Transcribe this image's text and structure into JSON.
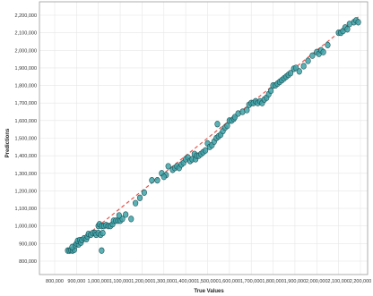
{
  "chart_data": {
    "type": "scatter",
    "xlabel": "True Values",
    "ylabel": "Predictions",
    "xlim": [
      800000,
      2200000
    ],
    "ylim": [
      800000,
      2200000
    ],
    "x_ticks": [
      "800,000",
      "900,000",
      "1,000,000",
      "1,100,000",
      "1,200,000",
      "1,300,000",
      "1,400,000",
      "1,500,000",
      "1,600,000",
      "1,700,000",
      "1,800,000",
      "1,900,000",
      "2,000,000",
      "2,100,000",
      "2,200,000"
    ],
    "y_ticks": [
      "800,000",
      "900,000",
      "1,000,000",
      "1,100,000",
      "1,200,000",
      "1,300,000",
      "1,400,000",
      "1,500,000",
      "1,600,000",
      "1,700,000",
      "1,800,000",
      "1,900,000",
      "2,000,000",
      "2,100,000",
      "2,200,000"
    ],
    "grid": true,
    "reference_line": {
      "style": "dashed",
      "color": "#e8534a",
      "from": [
        860000,
        860000
      ],
      "to": [
        2190000,
        2190000
      ]
    },
    "marker_color": "#3fa3a8",
    "series": [
      {
        "points": [
          [
            860000,
            860000
          ],
          [
            868000,
            860000
          ],
          [
            875000,
            862000
          ],
          [
            882000,
            860000
          ],
          [
            890000,
            865000
          ],
          [
            880000,
            880000
          ],
          [
            895000,
            890000
          ],
          [
            900000,
            900000
          ],
          [
            910000,
            895000
          ],
          [
            905000,
            915000
          ],
          [
            915000,
            920000
          ],
          [
            920000,
            905000
          ],
          [
            925000,
            920000
          ],
          [
            935000,
            930000
          ],
          [
            945000,
            925000
          ],
          [
            950000,
            940000
          ],
          [
            955000,
            955000
          ],
          [
            965000,
            950000
          ],
          [
            975000,
            960000
          ],
          [
            985000,
            960000
          ],
          [
            990000,
            950000
          ],
          [
            1000000,
            960000
          ],
          [
            1010000,
            950000
          ],
          [
            1015000,
            860000
          ],
          [
            1020000,
            960000
          ],
          [
            1000000,
            1000000
          ],
          [
            1005000,
            1010000
          ],
          [
            1015000,
            1000000
          ],
          [
            1025000,
            1000000
          ],
          [
            1035000,
            1005000
          ],
          [
            1045000,
            1000000
          ],
          [
            1055000,
            1000000
          ],
          [
            1065000,
            1010000
          ],
          [
            1070000,
            1030000
          ],
          [
            1080000,
            1030000
          ],
          [
            1090000,
            1030000
          ],
          [
            1100000,
            1030000
          ],
          [
            1110000,
            1040000
          ],
          [
            1095000,
            1060000
          ],
          [
            1125000,
            1065000
          ],
          [
            1150000,
            1040000
          ],
          [
            1170000,
            1130000
          ],
          [
            1190000,
            1160000
          ],
          [
            1210000,
            1190000
          ],
          [
            1245000,
            1260000
          ],
          [
            1270000,
            1260000
          ],
          [
            1290000,
            1300000
          ],
          [
            1310000,
            1290000
          ],
          [
            1300000,
            1280000
          ],
          [
            1320000,
            1340000
          ],
          [
            1340000,
            1320000
          ],
          [
            1350000,
            1330000
          ],
          [
            1360000,
            1340000
          ],
          [
            1370000,
            1330000
          ],
          [
            1380000,
            1350000
          ],
          [
            1390000,
            1360000
          ],
          [
            1400000,
            1380000
          ],
          [
            1410000,
            1390000
          ],
          [
            1420000,
            1370000
          ],
          [
            1430000,
            1380000
          ],
          [
            1440000,
            1410000
          ],
          [
            1445000,
            1380000
          ],
          [
            1450000,
            1400000
          ],
          [
            1460000,
            1400000
          ],
          [
            1470000,
            1410000
          ],
          [
            1480000,
            1420000
          ],
          [
            1490000,
            1430000
          ],
          [
            1500000,
            1470000
          ],
          [
            1510000,
            1450000
          ],
          [
            1520000,
            1460000
          ],
          [
            1530000,
            1480000
          ],
          [
            1540000,
            1500000
          ],
          [
            1550000,
            1510000
          ],
          [
            1560000,
            1520000
          ],
          [
            1545000,
            1580000
          ],
          [
            1570000,
            1540000
          ],
          [
            1580000,
            1560000
          ],
          [
            1590000,
            1570000
          ],
          [
            1600000,
            1600000
          ],
          [
            1610000,
            1600000
          ],
          [
            1620000,
            1610000
          ],
          [
            1625000,
            1620000
          ],
          [
            1640000,
            1640000
          ],
          [
            1660000,
            1650000
          ],
          [
            1680000,
            1660000
          ],
          [
            1690000,
            1690000
          ],
          [
            1700000,
            1700000
          ],
          [
            1710000,
            1700000
          ],
          [
            1720000,
            1710000
          ],
          [
            1730000,
            1700000
          ],
          [
            1740000,
            1710000
          ],
          [
            1750000,
            1700000
          ],
          [
            1760000,
            1720000
          ],
          [
            1770000,
            1730000
          ],
          [
            1780000,
            1750000
          ],
          [
            1790000,
            1770000
          ],
          [
            1800000,
            1800000
          ],
          [
            1810000,
            1800000
          ],
          [
            1820000,
            1810000
          ],
          [
            1830000,
            1820000
          ],
          [
            1840000,
            1830000
          ],
          [
            1850000,
            1840000
          ],
          [
            1860000,
            1850000
          ],
          [
            1870000,
            1860000
          ],
          [
            1880000,
            1870000
          ],
          [
            1895000,
            1895000
          ],
          [
            1905000,
            1900000
          ],
          [
            1920000,
            1880000
          ],
          [
            1940000,
            1910000
          ],
          [
            1960000,
            1940000
          ],
          [
            1980000,
            1970000
          ],
          [
            2000000,
            1990000
          ],
          [
            2010000,
            1980000
          ],
          [
            2020000,
            2000000
          ],
          [
            2030000,
            1990000
          ],
          [
            2050000,
            2030000
          ],
          [
            2100000,
            2100000
          ],
          [
            2110000,
            2100000
          ],
          [
            2120000,
            2110000
          ],
          [
            2130000,
            2130000
          ],
          [
            2140000,
            2120000
          ],
          [
            2150000,
            2150000
          ],
          [
            2170000,
            2160000
          ],
          [
            2180000,
            2170000
          ],
          [
            2190000,
            2160000
          ]
        ]
      }
    ]
  }
}
